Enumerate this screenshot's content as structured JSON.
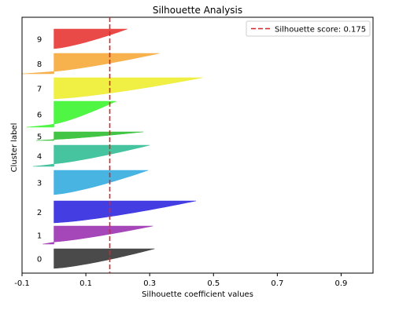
{
  "chart_data": {
    "type": "area",
    "title": "Silhouette Analysis",
    "xlabel": "Silhouette coefficient values",
    "ylabel": "Cluster label",
    "xlim": [
      -0.1,
      1.0
    ],
    "x_ticks": [
      "-0.1",
      "0.1",
      "0.3",
      "0.5",
      "0.7",
      "0.9"
    ],
    "x_tick_values": [
      -0.1,
      0.1,
      0.3,
      0.5,
      0.7,
      0.9
    ],
    "legend": {
      "label": "Silhouette score: 0.175",
      "placement": "top-right"
    },
    "silhouette_score": 0.175,
    "clusters": [
      {
        "label": "0",
        "color": "#404040",
        "min": 0.0,
        "max": 0.315
      },
      {
        "label": "1",
        "color": "#a03cb5",
        "min": -0.035,
        "max": 0.31
      },
      {
        "label": "2",
        "color": "#3a33e0",
        "min": 0.0,
        "max": 0.445
      },
      {
        "label": "3",
        "color": "#3eb0e0",
        "min": 0.0,
        "max": 0.295
      },
      {
        "label": "4",
        "color": "#3cc09a",
        "min": -0.065,
        "max": 0.3
      },
      {
        "label": "5",
        "color": "#38c23a",
        "min": -0.055,
        "max": 0.28
      },
      {
        "label": "6",
        "color": "#46f53a",
        "min": -0.085,
        "max": 0.195
      },
      {
        "label": "7",
        "color": "#eeee3a",
        "min": 0.0,
        "max": 0.465
      },
      {
        "label": "8",
        "color": "#f7ae45",
        "min": -0.1,
        "max": 0.33
      },
      {
        "label": "9",
        "color": "#e8403e",
        "min": 0.0,
        "max": 0.23
      }
    ],
    "grid": false
  }
}
